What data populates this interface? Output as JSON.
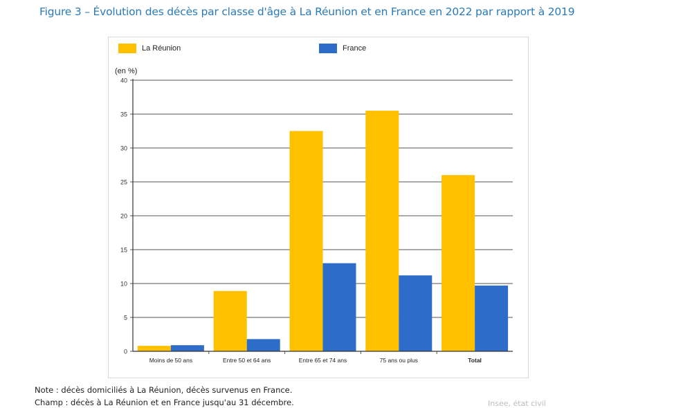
{
  "title": "Figure 3 – Évolution des décès par classe d'âge à La Réunion et en France en 2022 par rapport à 2019",
  "colors": {
    "la_reunion": "#FFC000",
    "france": "#2E6CC9",
    "title": "#2A7AB8"
  },
  "chart_data": {
    "type": "bar",
    "ylabel": "(en %)",
    "ylim": [
      0,
      40
    ],
    "yticks": [
      0,
      5,
      10,
      15,
      20,
      25,
      30,
      35,
      40
    ],
    "grid": true,
    "legend_position": "top",
    "categories": [
      "Moins de 50 ans",
      "Entre 50 et 64 ans",
      "Entre 65 et 74 ans",
      "75 ans ou plus",
      "Total"
    ],
    "series": [
      {
        "name": "La Réunion",
        "color": "#FFC000",
        "values": [
          0.8,
          8.9,
          32.5,
          35.5,
          26.0
        ]
      },
      {
        "name": "France",
        "color": "#2E6CC9",
        "values": [
          0.9,
          1.8,
          13.0,
          11.2,
          9.7
        ]
      }
    ]
  },
  "notes": {
    "note": "Note : décès domiciliés à La Réunion, décès survenus en France.",
    "champ": "Champ : décès à La Réunion et en France jusqu'au 31 décembre."
  },
  "faint_text": "Insee, état civil"
}
